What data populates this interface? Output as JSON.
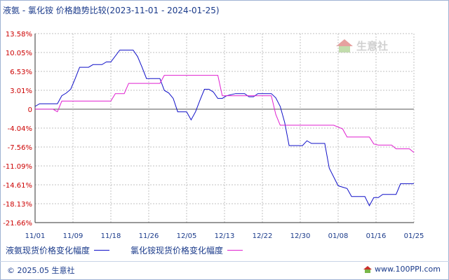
{
  "title": "液氨 - 氯化铵 价格趋势比较(2023-11-01 - 2024-01-25)",
  "watermark": "生意社",
  "footer": {
    "copyright": "© 2025.05 生意社",
    "site": "www.100PPI.com"
  },
  "colors": {
    "series1": "#1010c8",
    "series2": "#e020d0",
    "axis": "#333333",
    "grid": "#c0c0c0",
    "zero": "#555555",
    "tick_text": "#cc0000",
    "xtick_text": "#1a3a8a"
  },
  "chart_data": {
    "type": "line",
    "title": "液氨 - 氯化铵 价格趋势比较(2023-11-01 - 2024-01-25)",
    "xlabel": "",
    "ylabel": "",
    "x_ticks": [
      "11/01",
      "11/09",
      "11/18",
      "11/26",
      "12/05",
      "12/13",
      "12/22",
      "12/30",
      "01/08",
      "01/16",
      "01/25"
    ],
    "y_ticks": [
      "13.58%",
      "10.05%",
      "6.53%",
      "3.01%",
      "0",
      "-4.04%",
      "-7.56%",
      "-11.09%",
      "-14.61%",
      "-18.13%",
      "-21.66%"
    ],
    "ylim": [
      -21.66,
      13.58
    ],
    "x_range": [
      "2023-11-01",
      "2024-01-25"
    ],
    "grid": true,
    "legend_position": "bottom-left",
    "series": [
      {
        "name": "液氨现货价格变化幅度",
        "points": [
          [
            "2023-11-01",
            0
          ],
          [
            "2023-11-02",
            0.5
          ],
          [
            "2023-11-06",
            0.5
          ],
          [
            "2023-11-07",
            2.0
          ],
          [
            "2023-11-08",
            2.5
          ],
          [
            "2023-11-09",
            3.2
          ],
          [
            "2023-11-10",
            5.2
          ],
          [
            "2023-11-11",
            7.3
          ],
          [
            "2023-11-13",
            7.3
          ],
          [
            "2023-11-14",
            7.8
          ],
          [
            "2023-11-16",
            7.8
          ],
          [
            "2023-11-17",
            8.3
          ],
          [
            "2023-11-18",
            8.3
          ],
          [
            "2023-11-20",
            10.5
          ],
          [
            "2023-11-23",
            10.5
          ],
          [
            "2023-11-24",
            9.3
          ],
          [
            "2023-11-25",
            7.3
          ],
          [
            "2023-11-26",
            5.2
          ],
          [
            "2023-11-29",
            5.2
          ],
          [
            "2023-11-30",
            3.0
          ],
          [
            "2023-12-01",
            2.5
          ],
          [
            "2023-12-02",
            1.5
          ],
          [
            "2023-12-03",
            -1.0
          ],
          [
            "2023-12-05",
            -1.0
          ],
          [
            "2023-12-06",
            -2.5
          ],
          [
            "2023-12-07",
            -1.0
          ],
          [
            "2023-12-08",
            1.2
          ],
          [
            "2023-12-09",
            3.2
          ],
          [
            "2023-12-10",
            3.2
          ],
          [
            "2023-12-11",
            2.7
          ],
          [
            "2023-12-12",
            1.5
          ],
          [
            "2023-12-13",
            1.5
          ],
          [
            "2023-12-14",
            2.0
          ],
          [
            "2023-12-16",
            2.4
          ],
          [
            "2023-12-18",
            2.4
          ],
          [
            "2023-12-19",
            1.8
          ],
          [
            "2023-12-20",
            1.8
          ],
          [
            "2023-12-21",
            2.4
          ],
          [
            "2023-12-24",
            2.4
          ],
          [
            "2023-12-25",
            1.6
          ],
          [
            "2023-12-26",
            0
          ],
          [
            "2023-12-27",
            -3.0
          ],
          [
            "2023-12-28",
            -7.3
          ],
          [
            "2023-12-31",
            -7.3
          ],
          [
            "2024-01-01",
            -6.4
          ],
          [
            "2024-01-02",
            -6.9
          ],
          [
            "2024-01-05",
            -6.9
          ],
          [
            "2024-01-06",
            -11.5
          ],
          [
            "2024-01-08",
            -14.8
          ],
          [
            "2024-01-10",
            -15.3
          ],
          [
            "2024-01-11",
            -16.8
          ],
          [
            "2024-01-12",
            -16.8
          ],
          [
            "2024-01-14",
            -16.8
          ],
          [
            "2024-01-15",
            -18.5
          ],
          [
            "2024-01-16",
            -17.0
          ],
          [
            "2024-01-17",
            -17.0
          ],
          [
            "2024-01-18",
            -16.4
          ],
          [
            "2024-01-20",
            -16.4
          ],
          [
            "2024-01-21",
            -16.4
          ],
          [
            "2024-01-22",
            -14.4
          ],
          [
            "2024-01-25",
            -14.4
          ]
        ]
      },
      {
        "name": "氯化铵现货价格变化幅度",
        "points": [
          [
            "2023-11-01",
            -0.5
          ],
          [
            "2023-11-05",
            -0.5
          ],
          [
            "2023-11-06",
            -1.0
          ],
          [
            "2023-11-07",
            1.0
          ],
          [
            "2023-11-18",
            1.0
          ],
          [
            "2023-11-19",
            2.4
          ],
          [
            "2023-11-21",
            2.4
          ],
          [
            "2023-11-22",
            4.3
          ],
          [
            "2023-11-26",
            4.3
          ],
          [
            "2023-11-29",
            4.3
          ],
          [
            "2023-11-30",
            5.8
          ],
          [
            "2023-12-09",
            5.8
          ],
          [
            "2023-12-12",
            5.8
          ],
          [
            "2023-12-13",
            2.0
          ],
          [
            "2023-12-23",
            2.0
          ],
          [
            "2023-12-24",
            2.0
          ],
          [
            "2023-12-25",
            -1.5
          ],
          [
            "2023-12-26",
            -3.5
          ],
          [
            "2024-01-06",
            -3.5
          ],
          [
            "2024-01-07",
            -3.5
          ],
          [
            "2024-01-09",
            -4.2
          ],
          [
            "2024-01-10",
            -5.7
          ],
          [
            "2024-01-14",
            -5.7
          ],
          [
            "2024-01-15",
            -5.7
          ],
          [
            "2024-01-16",
            -7.0
          ],
          [
            "2024-01-17",
            -7.2
          ],
          [
            "2024-01-19",
            -7.2
          ],
          [
            "2024-01-20",
            -7.2
          ],
          [
            "2024-01-21",
            -7.9
          ],
          [
            "2024-01-23",
            -7.9
          ],
          [
            "2024-01-24",
            -7.9
          ],
          [
            "2024-01-25",
            -8.6
          ]
        ]
      }
    ]
  }
}
